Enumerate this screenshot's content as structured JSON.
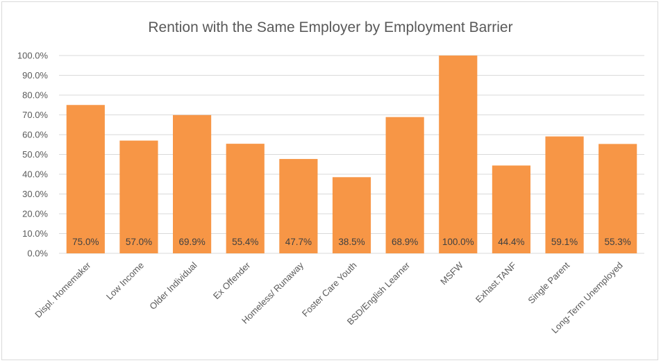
{
  "chart_data": {
    "type": "bar",
    "title": "Rention with the Same Employer by Employment Barrier",
    "categories": [
      "Displ. Homemaker",
      "Low Income",
      "Older Individual",
      "Ex Offender",
      "Homeless/ Runaway",
      "Foster Care Youth",
      "BSD/English Learner",
      "MSFW",
      "Exhast.TANF",
      "Single Parent",
      "Long-Term Unemployed"
    ],
    "values": [
      75.0,
      57.0,
      69.9,
      55.4,
      47.7,
      38.5,
      68.9,
      100.0,
      44.4,
      59.1,
      55.3
    ],
    "value_labels": [
      "75.0%",
      "57.0%",
      "69.9%",
      "55.4%",
      "47.7%",
      "38.5%",
      "68.9%",
      "100.0%",
      "44.4%",
      "59.1%",
      "55.3%"
    ],
    "y_ticks": [
      "0.0%",
      "10.0%",
      "20.0%",
      "30.0%",
      "40.0%",
      "50.0%",
      "60.0%",
      "70.0%",
      "80.0%",
      "90.0%",
      "100.0%"
    ],
    "ylim": [
      0,
      100
    ],
    "xlabel": "",
    "ylabel": "",
    "grid": true,
    "legend": "none",
    "bar_color": "#F79646",
    "grid_color": "#D9D9D9"
  }
}
